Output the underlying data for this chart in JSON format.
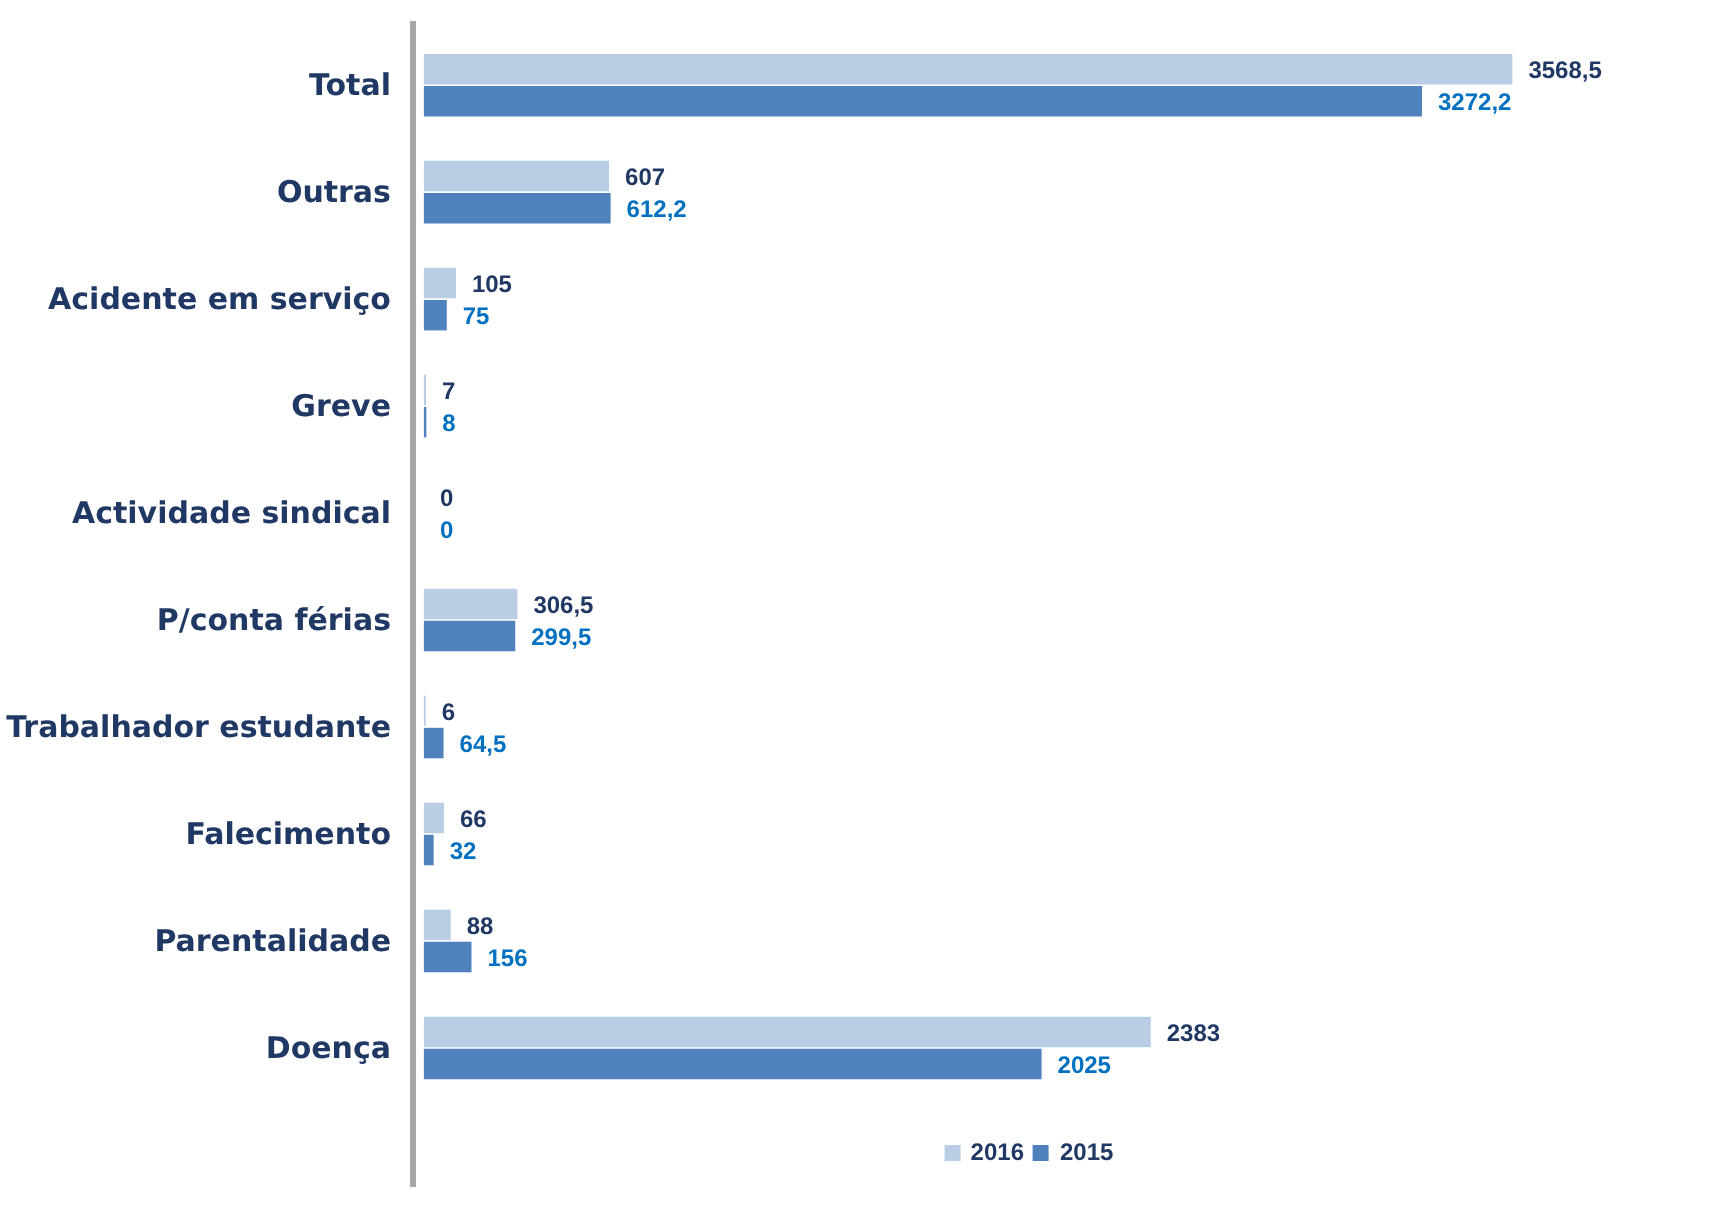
{
  "chart_data": {
    "type": "bar",
    "orientation": "horizontal",
    "categories": [
      "Total",
      "Outras",
      "Acidente em serviço",
      "Greve",
      "Actividade sindical",
      "P/conta férias",
      "Trabalhador estudante",
      "Falecimento",
      "Parentalidade",
      "Doença"
    ],
    "series": [
      {
        "name": "2016",
        "color": "#b9cde5",
        "values": [
          3568.5,
          607,
          105,
          7,
          0,
          306.5,
          6,
          66,
          88,
          2383
        ],
        "value_labels": [
          "3568,5",
          "607",
          "105",
          "7",
          "0",
          "306,5",
          "6",
          "66",
          "88",
          "2383"
        ]
      },
      {
        "name": "2015",
        "color": "#4f81bd",
        "values": [
          3272.2,
          612.2,
          75,
          8,
          0,
          299.5,
          64.5,
          32,
          156,
          2025
        ],
        "value_labels": [
          "3272,2",
          "612,2",
          "75",
          "8",
          "0",
          "299,5",
          "64,5",
          "32",
          "156",
          "2025"
        ]
      }
    ],
    "legend": "bottom",
    "grid": false
  }
}
